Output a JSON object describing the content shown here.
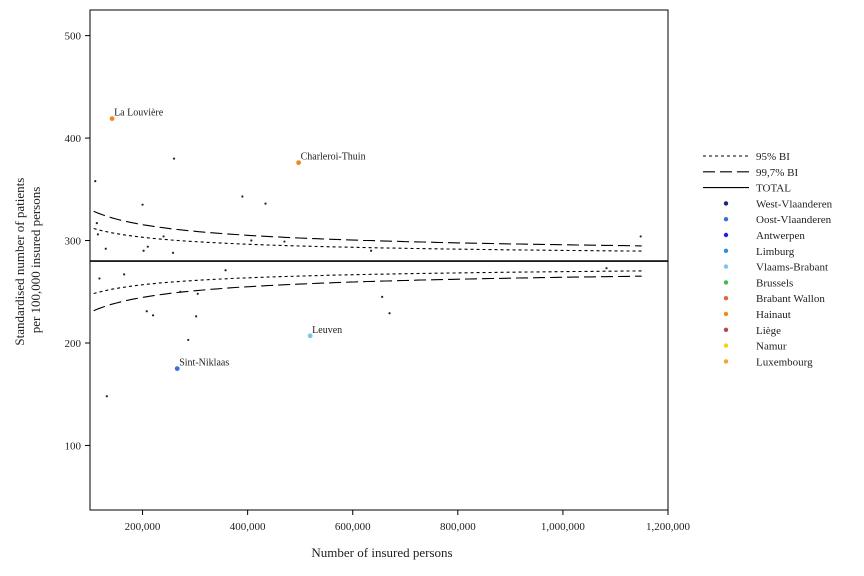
{
  "chart_data": {
    "type": "scatter",
    "xlabel": "Number of insured persons",
    "ylabel_lines": [
      "Standardised number of patients",
      "per 100,000 insured persons"
    ],
    "xlim": [
      100000,
      1200000
    ],
    "ylim": [
      37,
      525
    ],
    "xticks": [
      200000,
      400000,
      600000,
      800000,
      1000000,
      1200000
    ],
    "xtick_labels": [
      "200,000",
      "400,000",
      "600,000",
      "800,000",
      "1,000,000",
      "1,200,000"
    ],
    "yticks": [
      100,
      200,
      300,
      400,
      500
    ],
    "ytick_labels": [
      "100",
      "200",
      "300",
      "400",
      "500"
    ],
    "total": 280,
    "legend": [
      {
        "label": "95% BI",
        "kind": "line",
        "dash": "short"
      },
      {
        "label": "99,7% BI",
        "kind": "line",
        "dash": "long"
      },
      {
        "label": "TOTAL",
        "kind": "line",
        "dash": "solid"
      },
      {
        "label": "West-Vlaanderen",
        "kind": "dot",
        "color": "#1a237e"
      },
      {
        "label": "Oost-Vlaanderen",
        "kind": "dot",
        "color": "#3a6fd8"
      },
      {
        "label": "Antwerpen",
        "kind": "dot",
        "color": "#1f1fdc"
      },
      {
        "label": "Limburg",
        "kind": "dot",
        "color": "#2a8fe0"
      },
      {
        "label": "Vlaams-Brabant",
        "kind": "dot",
        "color": "#79c6ec"
      },
      {
        "label": "Brussels",
        "kind": "dot",
        "color": "#3cba54"
      },
      {
        "label": "Brabant Wallon",
        "kind": "dot",
        "color": "#e0663a"
      },
      {
        "label": "Hainaut",
        "kind": "dot",
        "color": "#f08a1c"
      },
      {
        "label": "Liège",
        "kind": "dot",
        "color": "#b5484a"
      },
      {
        "label": "Namur",
        "kind": "dot",
        "color": "#f3d11c"
      },
      {
        "label": "Luxembourg",
        "kind": "dot",
        "color": "#f2a52a"
      }
    ],
    "series": [
      {
        "x": 110000,
        "y": 358
      },
      {
        "x": 113000,
        "y": 317
      },
      {
        "x": 115000,
        "y": 306
      },
      {
        "x": 118000,
        "y": 263
      },
      {
        "x": 130000,
        "y": 292
      },
      {
        "x": 132000,
        "y": 148
      },
      {
        "x": 165000,
        "y": 267
      },
      {
        "x": 200000,
        "y": 335
      },
      {
        "x": 202000,
        "y": 290
      },
      {
        "x": 210000,
        "y": 294
      },
      {
        "x": 208000,
        "y": 231
      },
      {
        "x": 220000,
        "y": 227
      },
      {
        "x": 240000,
        "y": 304
      },
      {
        "x": 258000,
        "y": 288
      },
      {
        "x": 260000,
        "y": 380
      },
      {
        "x": 272000,
        "y": 250
      },
      {
        "x": 287000,
        "y": 203
      },
      {
        "x": 302000,
        "y": 226
      },
      {
        "x": 305000,
        "y": 248
      },
      {
        "x": 358000,
        "y": 271
      },
      {
        "x": 390000,
        "y": 343
      },
      {
        "x": 407000,
        "y": 300
      },
      {
        "x": 434000,
        "y": 336
      },
      {
        "x": 470000,
        "y": 299
      },
      {
        "x": 635000,
        "y": 290
      },
      {
        "x": 656000,
        "y": 245
      },
      {
        "x": 670000,
        "y": 229
      },
      {
        "x": 1083000,
        "y": 273
      },
      {
        "x": 1148000,
        "y": 304
      }
    ],
    "highlighted": [
      {
        "label": "La Louvière",
        "x": 142000,
        "y": 419,
        "color": "#f08a1c"
      },
      {
        "label": "Charleroi-Thuin",
        "x": 497000,
        "y": 376,
        "color": "#f08a1c"
      },
      {
        "label": "Leuven",
        "x": 519000,
        "y": 207,
        "color": "#79c6ec"
      },
      {
        "label": "Sint-Niklaas",
        "x": 266000,
        "y": 175,
        "color": "#3a6fd8"
      }
    ]
  }
}
